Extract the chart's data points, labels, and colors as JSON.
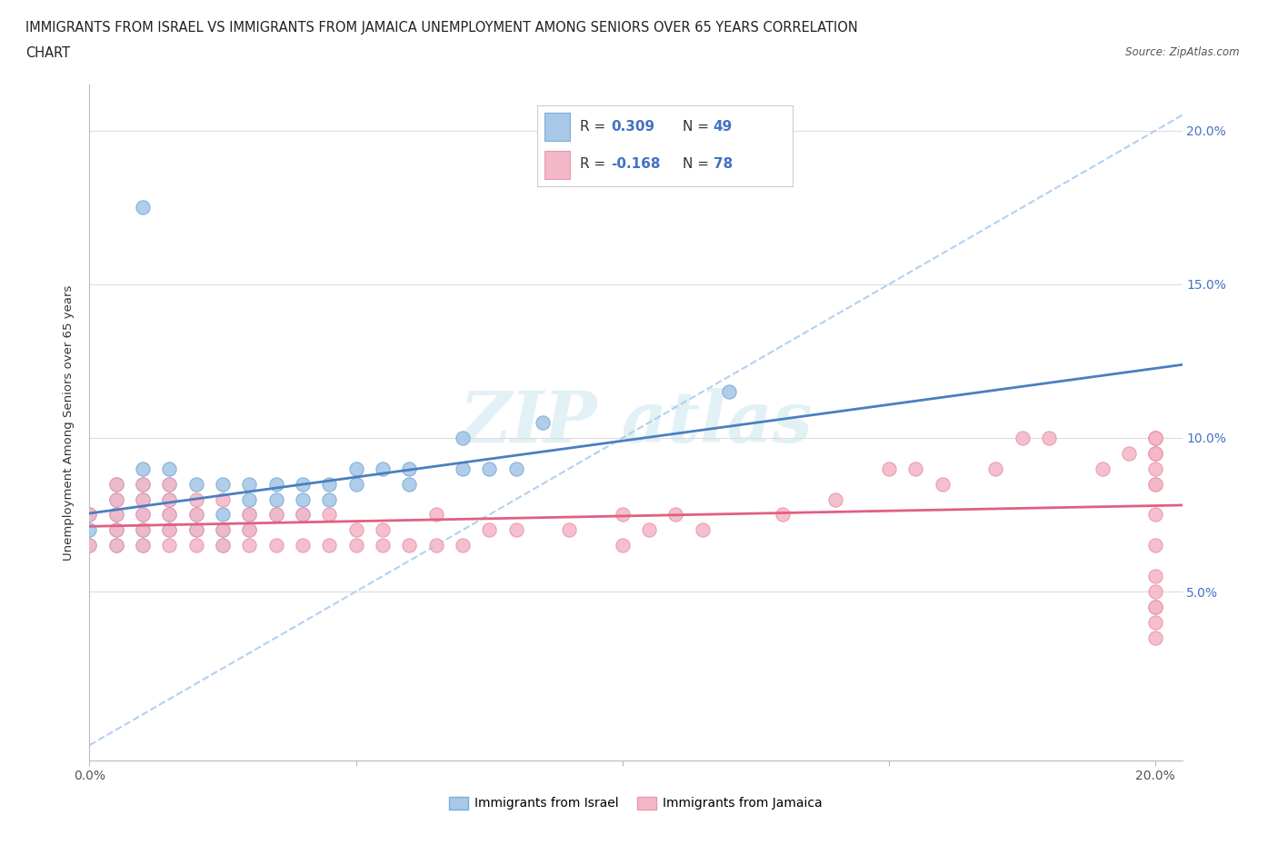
{
  "title_line1": "IMMIGRANTS FROM ISRAEL VS IMMIGRANTS FROM JAMAICA UNEMPLOYMENT AMONG SENIORS OVER 65 YEARS CORRELATION",
  "title_line2": "CHART",
  "source_text": "Source: ZipAtlas.com",
  "ylabel": "Unemployment Among Seniors over 65 years",
  "xlim": [
    0.0,
    0.205
  ],
  "ylim": [
    -0.005,
    0.215
  ],
  "xticks": [
    0.0,
    0.05,
    0.1,
    0.15,
    0.2
  ],
  "yticks": [
    0.05,
    0.1,
    0.15,
    0.2
  ],
  "xtick_labels_bottom": [
    "0.0%",
    "",
    "",
    "",
    "20.0%"
  ],
  "ytick_labels_right": [
    "5.0%",
    "10.0%",
    "15.0%",
    "20.0%"
  ],
  "israel_color": "#A8C8E8",
  "jamaica_color": "#F4B8C8",
  "israel_edge_color": "#7AAFD4",
  "jamaica_edge_color": "#E898B0",
  "trend_israel_color": "#4A7FBF",
  "trend_jamaica_color": "#E06080",
  "trend_dashed_color": "#AACCEE",
  "R_israel": 0.309,
  "N_israel": 49,
  "R_jamaica": -0.168,
  "N_jamaica": 78,
  "legend_label_israel": "Immigrants from Israel",
  "legend_label_jamaica": "Immigrants from Jamaica",
  "legend_blue": "#4472C4",
  "israel_x": [
    0.0,
    0.0,
    0.0,
    0.005,
    0.005,
    0.005,
    0.005,
    0.005,
    0.01,
    0.01,
    0.01,
    0.01,
    0.01,
    0.01,
    0.015,
    0.015,
    0.015,
    0.015,
    0.015,
    0.02,
    0.02,
    0.02,
    0.025,
    0.025,
    0.025,
    0.025,
    0.03,
    0.03,
    0.03,
    0.03,
    0.035,
    0.035,
    0.035,
    0.04,
    0.04,
    0.04,
    0.045,
    0.045,
    0.05,
    0.05,
    0.055,
    0.06,
    0.06,
    0.07,
    0.07,
    0.075,
    0.08,
    0.085,
    0.12
  ],
  "israel_y": [
    0.065,
    0.07,
    0.075,
    0.065,
    0.07,
    0.075,
    0.08,
    0.085,
    0.065,
    0.07,
    0.075,
    0.08,
    0.085,
    0.09,
    0.07,
    0.075,
    0.08,
    0.085,
    0.09,
    0.07,
    0.075,
    0.085,
    0.065,
    0.07,
    0.075,
    0.085,
    0.07,
    0.075,
    0.08,
    0.085,
    0.075,
    0.08,
    0.085,
    0.075,
    0.08,
    0.085,
    0.08,
    0.085,
    0.085,
    0.09,
    0.09,
    0.085,
    0.09,
    0.09,
    0.1,
    0.09,
    0.09,
    0.105,
    0.115
  ],
  "israel_outlier_x": [
    0.01
  ],
  "israel_outlier_y": [
    0.175
  ],
  "jamaica_x": [
    0.0,
    0.0,
    0.005,
    0.005,
    0.005,
    0.005,
    0.005,
    0.01,
    0.01,
    0.01,
    0.01,
    0.01,
    0.015,
    0.015,
    0.015,
    0.015,
    0.015,
    0.02,
    0.02,
    0.02,
    0.02,
    0.025,
    0.025,
    0.025,
    0.03,
    0.03,
    0.03,
    0.035,
    0.035,
    0.04,
    0.04,
    0.045,
    0.045,
    0.05,
    0.05,
    0.055,
    0.055,
    0.06,
    0.065,
    0.065,
    0.07,
    0.075,
    0.08,
    0.09,
    0.1,
    0.1,
    0.105,
    0.11,
    0.115,
    0.13,
    0.14,
    0.15,
    0.155,
    0.16,
    0.17,
    0.175,
    0.18,
    0.19,
    0.195,
    0.2,
    0.2,
    0.2,
    0.2,
    0.2,
    0.2,
    0.2,
    0.2,
    0.2,
    0.2,
    0.2,
    0.2,
    0.2,
    0.2,
    0.2,
    0.2,
    0.2,
    0.2,
    0.2
  ],
  "jamaica_y": [
    0.065,
    0.075,
    0.065,
    0.07,
    0.075,
    0.08,
    0.085,
    0.065,
    0.07,
    0.075,
    0.08,
    0.085,
    0.065,
    0.07,
    0.075,
    0.08,
    0.085,
    0.065,
    0.07,
    0.075,
    0.08,
    0.065,
    0.07,
    0.08,
    0.065,
    0.07,
    0.075,
    0.065,
    0.075,
    0.065,
    0.075,
    0.065,
    0.075,
    0.065,
    0.07,
    0.065,
    0.07,
    0.065,
    0.065,
    0.075,
    0.065,
    0.07,
    0.07,
    0.07,
    0.065,
    0.075,
    0.07,
    0.075,
    0.07,
    0.075,
    0.08,
    0.09,
    0.09,
    0.085,
    0.09,
    0.1,
    0.1,
    0.09,
    0.095,
    0.095,
    0.1,
    0.1,
    0.1,
    0.095,
    0.09,
    0.085,
    0.045,
    0.04,
    0.045,
    0.05,
    0.055,
    0.065,
    0.075,
    0.085,
    0.095,
    0.1,
    0.045,
    0.035
  ]
}
